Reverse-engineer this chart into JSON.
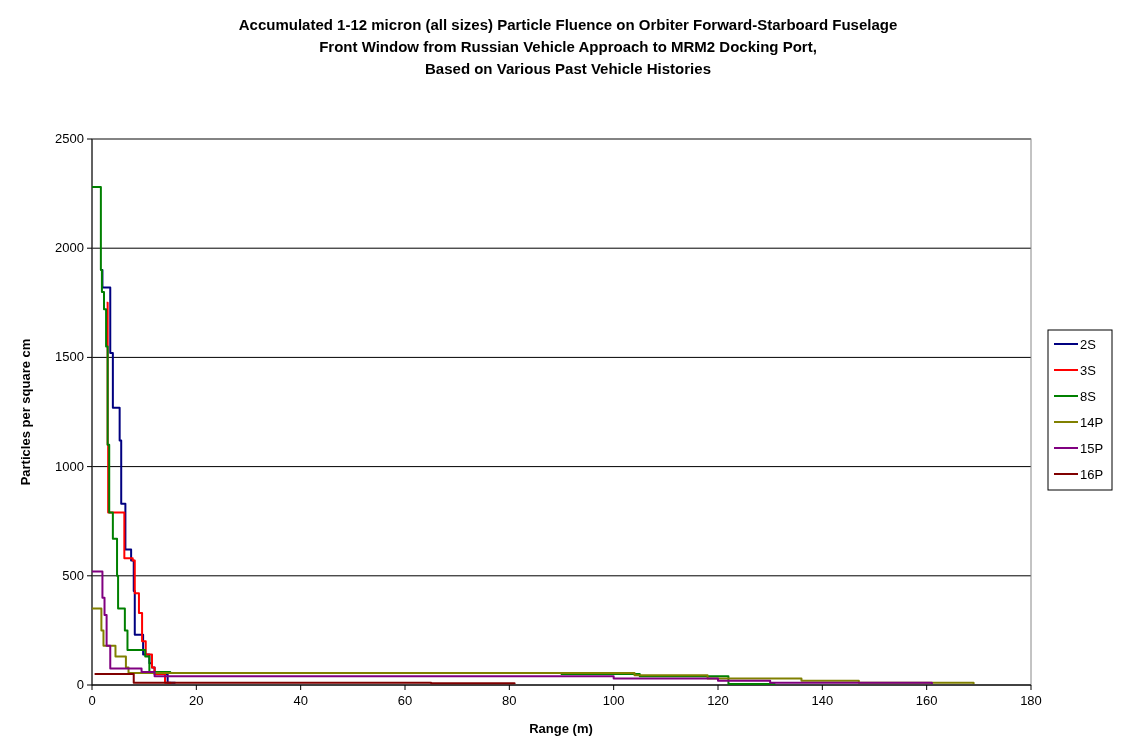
{
  "chart_data": {
    "type": "step",
    "title": "Accumulated 1-12 micron (all sizes) Particle Fluence on Orbiter Forward-Starboard Fuselage\nFront Window from Russian Vehicle Approach to MRM2 Docking Port,\nBased on Various Past Vehicle Histories",
    "xlabel": "Range (m)",
    "ylabel": "Particles per square cm",
    "xlim": [
      0,
      180
    ],
    "xticks": [
      0,
      20,
      40,
      60,
      80,
      100,
      120,
      140,
      160,
      180
    ],
    "ylim": [
      0,
      2500
    ],
    "yticks": [
      0,
      500,
      1000,
      1500,
      2000,
      2500
    ],
    "grid": "y",
    "legend": "right",
    "marker": "none",
    "line_style": "solid",
    "series": [
      {
        "name": "2S",
        "color": "#000080",
        "x": [
          1.8,
          2.0,
          3.5,
          4.0,
          5.3,
          5.6,
          6.4,
          7.5,
          8.0,
          8.2,
          9.8,
          11,
          11.5,
          12,
          14.5,
          16
        ],
        "values": [
          1900,
          1820,
          1520,
          1270,
          1120,
          830,
          620,
          570,
          430,
          230,
          140,
          100,
          80,
          50,
          10,
          10
        ]
      },
      {
        "name": "3S",
        "color": "#ff0000",
        "x": [
          2.8,
          3.0,
          3.1,
          5.7,
          6.2,
          7.8,
          8.2,
          9.0,
          9.6,
          10.3,
          11.5,
          12,
          14,
          15
        ],
        "values": [
          1750,
          1100,
          790,
          790,
          580,
          570,
          420,
          330,
          200,
          140,
          80,
          50,
          10,
          5
        ]
      },
      {
        "name": "8S",
        "color": "#008000",
        "x": [
          0,
          1.7,
          1.9,
          2.3,
          2.7,
          3.0,
          3.3,
          4.0,
          4.8,
          5.0,
          6.3,
          6.8,
          9.5,
          10.2,
          11,
          15,
          90,
          105,
          122,
          131
        ],
        "values": [
          2280,
          1900,
          1800,
          1720,
          1550,
          1100,
          790,
          670,
          500,
          350,
          250,
          160,
          160,
          130,
          60,
          55,
          50,
          40,
          5,
          5
        ]
      },
      {
        "name": "14P",
        "color": "#808000",
        "x": [
          0,
          1.5,
          1.8,
          2.2,
          4.0,
          4.5,
          6.5,
          7,
          17,
          90,
          104,
          118,
          136,
          147,
          169
        ],
        "values": [
          350,
          350,
          250,
          180,
          180,
          130,
          80,
          55,
          55,
          55,
          45,
          30,
          20,
          10,
          5
        ]
      },
      {
        "name": "15P",
        "color": "#800080",
        "x": [
          0,
          1.7,
          2,
          2.4,
          2.8,
          3.5,
          8.5,
          9.5,
          12,
          90,
          100,
          120,
          130,
          161
        ],
        "values": [
          520,
          520,
          400,
          320,
          180,
          75,
          75,
          60,
          40,
          40,
          30,
          20,
          10,
          5
        ]
      },
      {
        "name": "16P",
        "color": "#800000",
        "x": [
          0.5,
          7,
          8,
          15,
          65,
          81
        ],
        "values": [
          50,
          50,
          10,
          10,
          8,
          5
        ]
      }
    ]
  }
}
